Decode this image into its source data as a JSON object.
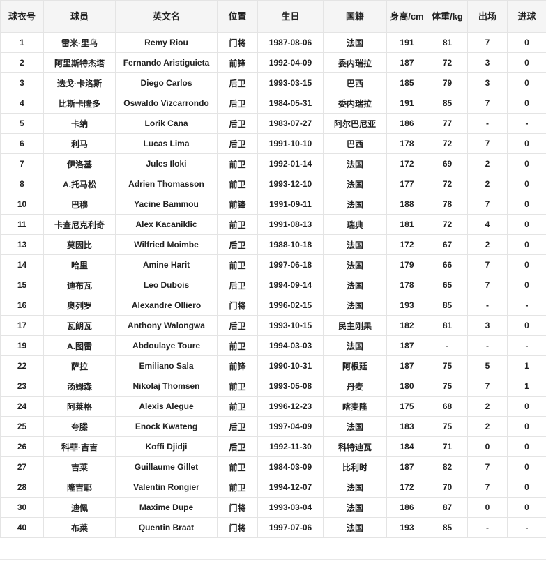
{
  "table": {
    "headers": [
      "球衣号",
      "球员",
      "英文名",
      "位置",
      "生日",
      "国籍",
      "身高/cm",
      "体重/kg",
      "出场",
      "进球"
    ],
    "rows": [
      [
        "1",
        "雷米·里乌",
        "Remy Riou",
        "门将",
        "1987-08-06",
        "法国",
        "191",
        "81",
        "7",
        "0"
      ],
      [
        "2",
        "阿里斯特杰塔",
        "Fernando Aristiguieta",
        "前锋",
        "1992-04-09",
        "委内瑞拉",
        "187",
        "72",
        "3",
        "0"
      ],
      [
        "3",
        "迭戈·卡洛斯",
        "Diego Carlos",
        "后卫",
        "1993-03-15",
        "巴西",
        "185",
        "79",
        "3",
        "0"
      ],
      [
        "4",
        "比斯卡隆多",
        "Oswaldo Vizcarrondo",
        "后卫",
        "1984-05-31",
        "委内瑞拉",
        "191",
        "85",
        "7",
        "0"
      ],
      [
        "5",
        "卡纳",
        "Lorik Cana",
        "后卫",
        "1983-07-27",
        "阿尔巴尼亚",
        "186",
        "77",
        "-",
        "-"
      ],
      [
        "6",
        "利马",
        "Lucas Lima",
        "后卫",
        "1991-10-10",
        "巴西",
        "178",
        "72",
        "7",
        "0"
      ],
      [
        "7",
        "伊洛基",
        "Jules Iloki",
        "前卫",
        "1992-01-14",
        "法国",
        "172",
        "69",
        "2",
        "0"
      ],
      [
        "8",
        "A.托马松",
        "Adrien Thomasson",
        "前卫",
        "1993-12-10",
        "法国",
        "177",
        "72",
        "2",
        "0"
      ],
      [
        "10",
        "巴穆",
        "Yacine Bammou",
        "前锋",
        "1991-09-11",
        "法国",
        "188",
        "78",
        "7",
        "0"
      ],
      [
        "11",
        "卡查尼克利奇",
        "Alex Kacaniklic",
        "前卫",
        "1991-08-13",
        "瑞典",
        "181",
        "72",
        "4",
        "0"
      ],
      [
        "13",
        "莫因比",
        "Wilfried Moimbe",
        "后卫",
        "1988-10-18",
        "法国",
        "172",
        "67",
        "2",
        "0"
      ],
      [
        "14",
        "哈里",
        "Amine Harit",
        "前卫",
        "1997-06-18",
        "法国",
        "179",
        "66",
        "7",
        "0"
      ],
      [
        "15",
        "迪布瓦",
        "Leo Dubois",
        "后卫",
        "1994-09-14",
        "法国",
        "178",
        "65",
        "7",
        "0"
      ],
      [
        "16",
        "奥列罗",
        "Alexandre Olliero",
        "门将",
        "1996-02-15",
        "法国",
        "193",
        "85",
        "-",
        "-"
      ],
      [
        "17",
        "瓦朗瓦",
        "Anthony Walongwa",
        "后卫",
        "1993-10-15",
        "民主刚果",
        "182",
        "81",
        "3",
        "0"
      ],
      [
        "19",
        "A.图雷",
        "Abdoulaye Toure",
        "前卫",
        "1994-03-03",
        "法国",
        "187",
        "-",
        "-",
        "-"
      ],
      [
        "22",
        "萨拉",
        "Emiliano Sala",
        "前锋",
        "1990-10-31",
        "阿根廷",
        "187",
        "75",
        "5",
        "1"
      ],
      [
        "23",
        "汤姆森",
        "Nikolaj Thomsen",
        "前卫",
        "1993-05-08",
        "丹麦",
        "180",
        "75",
        "7",
        "1"
      ],
      [
        "24",
        "阿莱格",
        "Alexis Alegue",
        "前卫",
        "1996-12-23",
        "喀麦隆",
        "175",
        "68",
        "2",
        "0"
      ],
      [
        "25",
        "夸滕",
        "Enock Kwateng",
        "后卫",
        "1997-04-09",
        "法国",
        "183",
        "75",
        "2",
        "0"
      ],
      [
        "26",
        "科菲·吉吉",
        "Koffi Djidji",
        "后卫",
        "1992-11-30",
        "科特迪瓦",
        "184",
        "71",
        "0",
        "0"
      ],
      [
        "27",
        "吉莱",
        "Guillaume Gillet",
        "前卫",
        "1984-03-09",
        "比利时",
        "187",
        "82",
        "7",
        "0"
      ],
      [
        "28",
        "隆吉耶",
        "Valentin Rongier",
        "前卫",
        "1994-12-07",
        "法国",
        "172",
        "70",
        "7",
        "0"
      ],
      [
        "30",
        "迪佩",
        "Maxime Dupe",
        "门将",
        "1993-03-04",
        "法国",
        "186",
        "87",
        "0",
        "0"
      ],
      [
        "40",
        "布莱",
        "Quentin Braat",
        "门将",
        "1997-07-06",
        "法国",
        "193",
        "85",
        "-",
        "-"
      ]
    ]
  }
}
